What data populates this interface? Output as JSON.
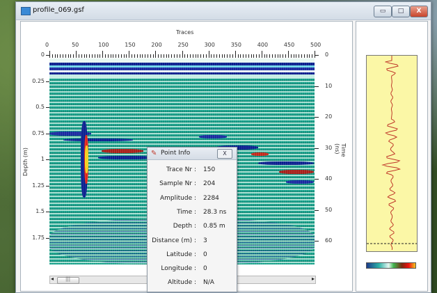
{
  "window": {
    "title": "profile_069.gsf",
    "buttons": {
      "minimize": "▭",
      "maximize": "□",
      "close": "X"
    }
  },
  "plot": {
    "x_axis_title": "Traces",
    "x_ticks": [
      "0",
      "50",
      "100",
      "150",
      "200",
      "250",
      "300",
      "350",
      "400",
      "450",
      "500"
    ],
    "y_left_title": "Depth (m)",
    "y_left_ticks": [
      "0",
      "0.25",
      "0.5",
      "0.75",
      "1",
      "1.25",
      "1.5",
      "1.75"
    ],
    "y_right_title": "Time (ns)",
    "y_right_ticks": [
      "0",
      "10",
      "20",
      "30",
      "40",
      "50",
      "60"
    ],
    "scroll_arrows": {
      "left": "◂",
      "right": "▸"
    },
    "scroll_thumb": "|||"
  },
  "point_info": {
    "title": "Point Info",
    "close_label": "X",
    "fields": [
      {
        "label": "Trace Nr :",
        "value": "150"
      },
      {
        "label": "Sample Nr :",
        "value": "204"
      },
      {
        "label": "Amplitude :",
        "value": "2284"
      },
      {
        "label": "Time :",
        "value": "28.3 ns"
      },
      {
        "label": "Depth :",
        "value": "0.85 m"
      },
      {
        "label": "Distance (m) :",
        "value": "3"
      },
      {
        "label": "Latitude :",
        "value": "0"
      },
      {
        "label": "Longitude :",
        "value": "0"
      },
      {
        "label": "Altitude :",
        "value": "N/A"
      }
    ]
  },
  "colors": {
    "radargram_low": "#1d3a8a",
    "radargram_mid": "#16a08a",
    "radargram_high": "#e11",
    "trace_line": "#c0392b",
    "trace_background": "#fbf7a6"
  }
}
